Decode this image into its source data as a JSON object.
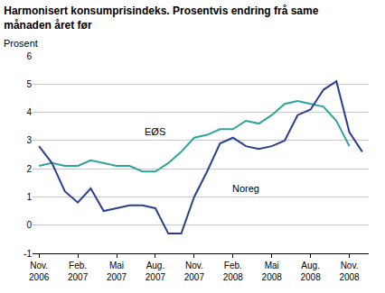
{
  "chart_data": {
    "type": "line",
    "title": "Harmonisert konsumprisindeks. Prosentvis endring frå same\nmånaden året før",
    "y_label": "Prosent",
    "categories": [
      "Nov.\n2006",
      null,
      null,
      "Feb.\n2007",
      null,
      null,
      "Mai\n2007",
      null,
      null,
      "Aug.\n2007",
      null,
      null,
      "Nov.\n2007",
      null,
      null,
      "Feb.\n2008",
      null,
      null,
      "Mai\n2008",
      null,
      null,
      "Aug.\n2008",
      null,
      null,
      "Nov.\n2008",
      null
    ],
    "series": [
      {
        "name": "EØS",
        "color": "#2ea39c",
        "values": [
          2.1,
          2.2,
          2.1,
          2.1,
          2.3,
          2.2,
          2.1,
          2.1,
          1.9,
          1.9,
          2.2,
          2.6,
          3.1,
          3.2,
          3.4,
          3.4,
          3.7,
          3.6,
          3.9,
          4.3,
          4.4,
          4.3,
          4.2,
          3.7,
          2.8,
          null
        ]
      },
      {
        "name": "Noreg",
        "color": "#2b3f8e",
        "values": [
          2.8,
          2.2,
          1.2,
          0.8,
          1.3,
          0.5,
          0.6,
          0.7,
          0.7,
          0.6,
          -0.3,
          -0.3,
          1.0,
          1.9,
          2.9,
          3.1,
          2.8,
          2.7,
          2.8,
          3.0,
          3.9,
          4.1,
          4.8,
          5.1,
          3.3,
          2.6
        ]
      }
    ],
    "annotations": [
      {
        "text": "EØS",
        "x": 9,
        "y": 3.3
      },
      {
        "text": "Noreg",
        "x": 16,
        "y": 1.3
      }
    ],
    "ylim": [
      -1,
      6
    ],
    "yticks": [
      -1,
      0,
      1,
      2,
      3,
      4,
      5,
      6
    ],
    "grid": true
  }
}
